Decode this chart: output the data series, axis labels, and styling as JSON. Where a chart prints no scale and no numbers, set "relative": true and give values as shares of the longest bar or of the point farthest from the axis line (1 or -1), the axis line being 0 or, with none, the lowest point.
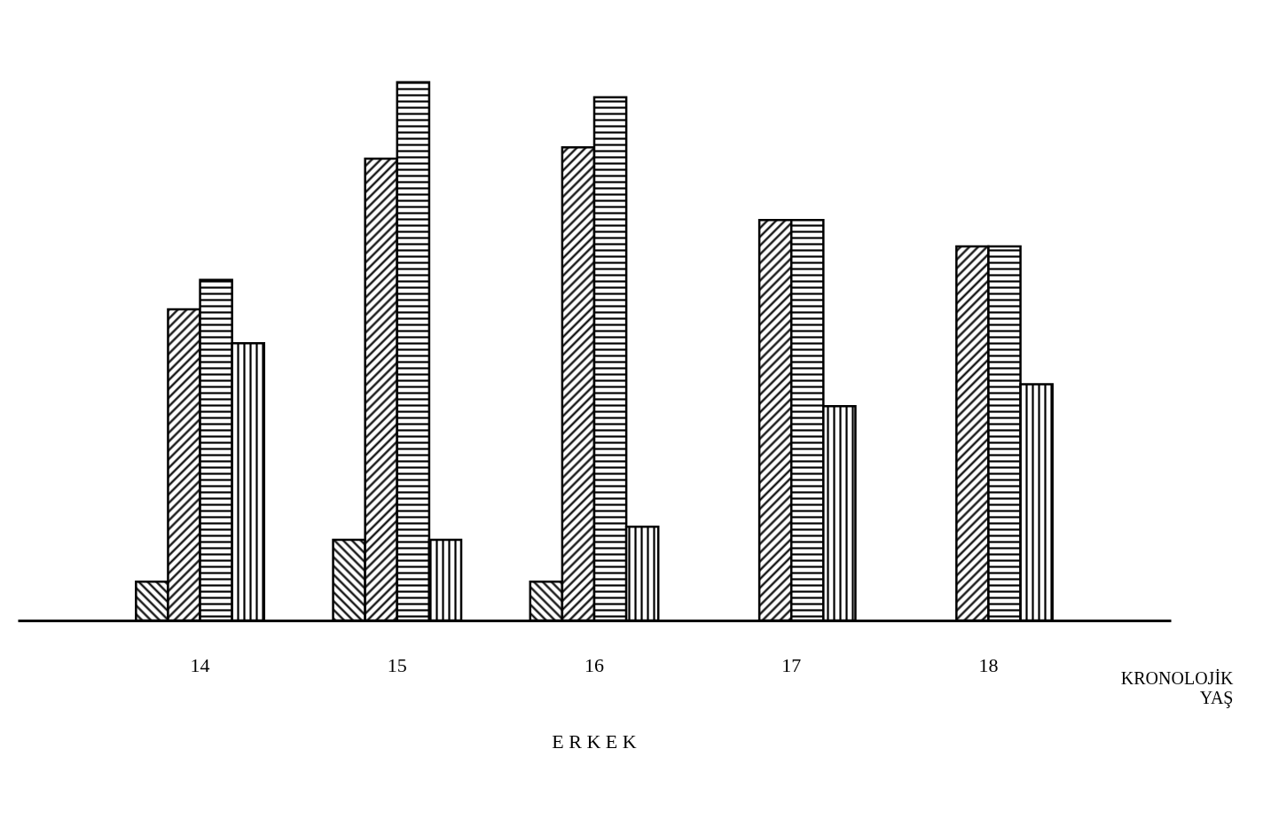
{
  "chart_data": {
    "type": "bar",
    "relative": true,
    "xlabel": "KRONOLOJİK YAŞ",
    "annotations": [
      "E R K E K"
    ],
    "categories": [
      "14",
      "15",
      "16",
      "17",
      "18"
    ],
    "series": [
      {
        "color": "#000000",
        "values": [
          0.072,
          0.15,
          0.072,
          null,
          null
        ]
      },
      {
        "color": "#000000",
        "values": [
          0.578,
          0.858,
          0.879,
          0.744,
          0.695
        ]
      },
      {
        "color": "#000000",
        "values": [
          0.633,
          1,
          0.972,
          0.744,
          0.695
        ]
      },
      {
        "color": "#000000",
        "values": [
          0.515,
          0.15,
          0.174,
          0.398,
          0.439
        ]
      }
    ]
  }
}
